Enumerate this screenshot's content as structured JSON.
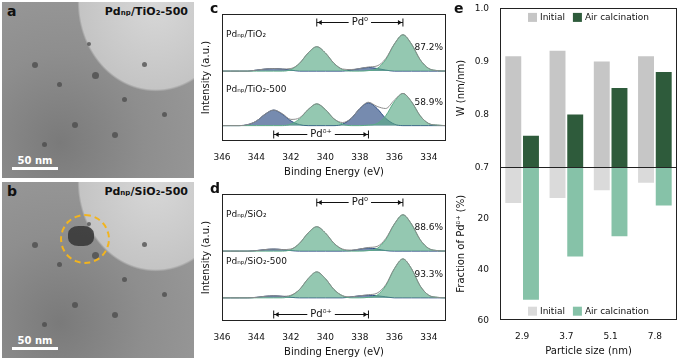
{
  "images": [
    {
      "label": "a",
      "title": "Pdₙₚ/TiO₂-500",
      "scale_bar": "50 nm"
    },
    {
      "label": "b",
      "title": "Pdₙₚ/SiO₂-500",
      "scale_bar": "50 nm"
    }
  ],
  "chart_data": [
    {
      "label": "c",
      "type": "line",
      "x": [
        346,
        345.5,
        345,
        344.5,
        344,
        343.5,
        343,
        342.5,
        342,
        341.5,
        341,
        340.5,
        340,
        339.5,
        339,
        338.5,
        338,
        337.5,
        337,
        336.5,
        336,
        335.5,
        335,
        334.5,
        334,
        333.5,
        333
      ],
      "xlim": [
        346,
        333
      ],
      "xticks": [
        346,
        344,
        342,
        340,
        338,
        336,
        334
      ],
      "xlabel": "Binding Energy (eV)",
      "ylabel": "Intensity (a.u.)",
      "ylim": [
        -0.25,
        2.2
      ],
      "tick_labels": "x",
      "annotations": [
        {
          "text": "Pd⁰",
          "x": [
            340.5,
            335.5
          ],
          "y": 2.05
        },
        {
          "text": "Pdᵟ⁺",
          "x": [
            343,
            337.5
          ],
          "y": -0.12
        }
      ],
      "spectra": [
        {
          "name": "Pdₙₚ/TiO₂",
          "annotation": "87.2%",
          "baseline": 1.1,
          "envelope": {
            "color": "#8c8c8c",
            "values": [
              1.1,
              1.1,
              1.1,
              1.1,
              1.12,
              1.14,
              1.15,
              1.14,
              1.15,
              1.25,
              1.45,
              1.57,
              1.45,
              1.25,
              1.14,
              1.13,
              1.15,
              1.18,
              1.2,
              1.34,
              1.62,
              1.8,
              1.62,
              1.32,
              1.15,
              1.11,
              1.1
            ]
          },
          "series": [
            {
              "color": "#5bab87",
              "values": [
                1.1,
                1.1,
                1.1,
                1.1,
                1.1,
                1.1,
                1.1,
                1.1,
                1.13,
                1.25,
                1.45,
                1.57,
                1.45,
                1.25,
                1.13,
                1.1,
                1.1,
                1.11,
                1.15,
                1.32,
                1.62,
                1.8,
                1.62,
                1.32,
                1.15,
                1.11,
                1.1
              ]
            },
            {
              "color": "#2c4d84",
              "values": [
                1.1,
                1.1,
                1.1,
                1.1,
                1.12,
                1.14,
                1.15,
                1.14,
                1.12,
                1.1,
                1.1,
                1.1,
                1.1,
                1.1,
                1.1,
                1.12,
                1.15,
                1.17,
                1.15,
                1.12,
                1.1,
                1.1,
                1.1,
                1.1,
                1.1,
                1.1,
                1.1
              ]
            }
          ]
        },
        {
          "name": "Pdₙₚ/TiO₂-500",
          "annotation": "58.9%",
          "baseline": 0.05,
          "envelope": {
            "color": "#8c8c8c",
            "values": [
              0.05,
              0.05,
              0.05,
              0.07,
              0.14,
              0.27,
              0.35,
              0.28,
              0.17,
              0.2,
              0.36,
              0.47,
              0.36,
              0.18,
              0.11,
              0.19,
              0.38,
              0.5,
              0.42,
              0.38,
              0.54,
              0.67,
              0.51,
              0.24,
              0.09,
              0.06,
              0.05
            ]
          },
          "series": [
            {
              "color": "#5bab87",
              "values": [
                0.05,
                0.05,
                0.05,
                0.05,
                0.05,
                0.05,
                0.05,
                0.05,
                0.08,
                0.18,
                0.36,
                0.47,
                0.36,
                0.18,
                0.08,
                0.05,
                0.05,
                0.06,
                0.09,
                0.24,
                0.51,
                0.67,
                0.51,
                0.24,
                0.09,
                0.06,
                0.05
              ]
            },
            {
              "color": "#2c4d84",
              "values": [
                0.05,
                0.05,
                0.05,
                0.07,
                0.14,
                0.27,
                0.35,
                0.27,
                0.14,
                0.07,
                0.05,
                0.05,
                0.05,
                0.05,
                0.08,
                0.19,
                0.38,
                0.49,
                0.38,
                0.19,
                0.08,
                0.05,
                0.05,
                0.05,
                0.05,
                0.05,
                0.05
              ]
            }
          ]
        }
      ]
    },
    {
      "label": "d",
      "type": "line",
      "x": [
        346,
        345.5,
        345,
        344.5,
        344,
        343.5,
        343,
        342.5,
        342,
        341.5,
        341,
        340.5,
        340,
        339.5,
        339,
        338.5,
        338,
        337.5,
        337,
        336.5,
        336,
        335.5,
        335,
        334.5,
        334,
        333.5,
        333
      ],
      "xlim": [
        346,
        333
      ],
      "xticks": [
        346,
        344,
        342,
        340,
        338,
        336,
        334
      ],
      "xlabel": "Binding Energy (eV)",
      "ylabel": "Intensity (a.u.)",
      "ylim": [
        -0.25,
        2.2
      ],
      "tick_labels": "x",
      "annotations": [
        {
          "text": "Pd⁰",
          "x": [
            340.5,
            335.5
          ],
          "y": 2.05
        },
        {
          "text": "Pdᵟ⁺",
          "x": [
            343,
            337.5
          ],
          "y": -0.12
        }
      ],
      "spectra": [
        {
          "name": "Pdₙₚ/SiO₂",
          "annotation": "88.6%",
          "baseline": 1.1,
          "envelope": {
            "color": "#8c8c8c",
            "values": [
              1.1,
              1.1,
              1.1,
              1.1,
              1.11,
              1.13,
              1.14,
              1.13,
              1.14,
              1.25,
              1.45,
              1.57,
              1.45,
              1.25,
              1.14,
              1.12,
              1.14,
              1.17,
              1.19,
              1.34,
              1.62,
              1.8,
              1.62,
              1.32,
              1.15,
              1.11,
              1.1
            ]
          },
          "series": [
            {
              "color": "#5bab87",
              "values": [
                1.1,
                1.1,
                1.1,
                1.1,
                1.1,
                1.1,
                1.1,
                1.1,
                1.13,
                1.25,
                1.45,
                1.57,
                1.45,
                1.25,
                1.13,
                1.1,
                1.1,
                1.11,
                1.15,
                1.32,
                1.62,
                1.8,
                1.62,
                1.32,
                1.15,
                1.11,
                1.1
              ]
            },
            {
              "color": "#2c4d84",
              "values": [
                1.1,
                1.1,
                1.1,
                1.1,
                1.11,
                1.13,
                1.14,
                1.13,
                1.11,
                1.1,
                1.1,
                1.1,
                1.1,
                1.1,
                1.1,
                1.11,
                1.14,
                1.16,
                1.14,
                1.11,
                1.1,
                1.1,
                1.1,
                1.1,
                1.1,
                1.1,
                1.1
              ]
            }
          ]
        },
        {
          "name": "Pdₙₚ/SiO₂-500",
          "annotation": "93.3%",
          "baseline": 0.2,
          "envelope": {
            "color": "#8c8c8c",
            "values": [
              0.2,
              0.2,
              0.2,
              0.2,
              0.21,
              0.23,
              0.24,
              0.23,
              0.25,
              0.36,
              0.57,
              0.7,
              0.57,
              0.36,
              0.24,
              0.22,
              0.24,
              0.26,
              0.29,
              0.45,
              0.76,
              0.95,
              0.76,
              0.43,
              0.25,
              0.21,
              0.2
            ]
          },
          "series": [
            {
              "color": "#5bab87",
              "values": [
                0.2,
                0.2,
                0.2,
                0.2,
                0.2,
                0.2,
                0.2,
                0.2,
                0.24,
                0.36,
                0.57,
                0.7,
                0.57,
                0.36,
                0.24,
                0.2,
                0.2,
                0.21,
                0.25,
                0.43,
                0.76,
                0.95,
                0.76,
                0.43,
                0.25,
                0.21,
                0.2
              ]
            },
            {
              "color": "#2c4d84",
              "values": [
                0.2,
                0.2,
                0.2,
                0.2,
                0.21,
                0.23,
                0.24,
                0.23,
                0.21,
                0.2,
                0.2,
                0.2,
                0.2,
                0.2,
                0.2,
                0.22,
                0.24,
                0.25,
                0.24,
                0.22,
                0.2,
                0.2,
                0.2,
                0.2,
                0.2,
                0.2,
                0.2
              ]
            }
          ]
        }
      ]
    },
    {
      "label": "e",
      "type": "bar",
      "categories": [
        "2.9",
        "3.7",
        "5.1",
        "7.8"
      ],
      "xlabel": "Particle size (nm)",
      "panels": [
        {
          "ylabel": "W (nm/nm)",
          "ylim": [
            0.7,
            1
          ],
          "yticks": [
            0.7,
            0.8,
            0.9,
            {
              "value": 1,
              "label": "1.0"
            }
          ],
          "legend": "top",
          "series": [
            {
              "name": "Initial",
              "color": "#c6c6c6",
              "values": [
                0.91,
                0.92,
                0.9,
                0.91
              ]
            },
            {
              "name": "Air calcination",
              "color": "#2e5b3b",
              "values": [
                0.76,
                0.8,
                0.85,
                0.88
              ]
            }
          ]
        },
        {
          "ylabel": "Fraction of Pdᵟ⁺ (%)",
          "ylim": [
            60,
            0
          ],
          "yticks": [
            20,
            40,
            60
          ],
          "legend": "bottom",
          "series": [
            {
              "name": "Initial",
              "color": "#dadada",
              "values": [
                14,
                12,
                9,
                6
              ]
            },
            {
              "name": "Air calcination",
              "color": "#86c2a8",
              "values": [
                52,
                35,
                27,
                15
              ]
            }
          ]
        }
      ]
    }
  ]
}
